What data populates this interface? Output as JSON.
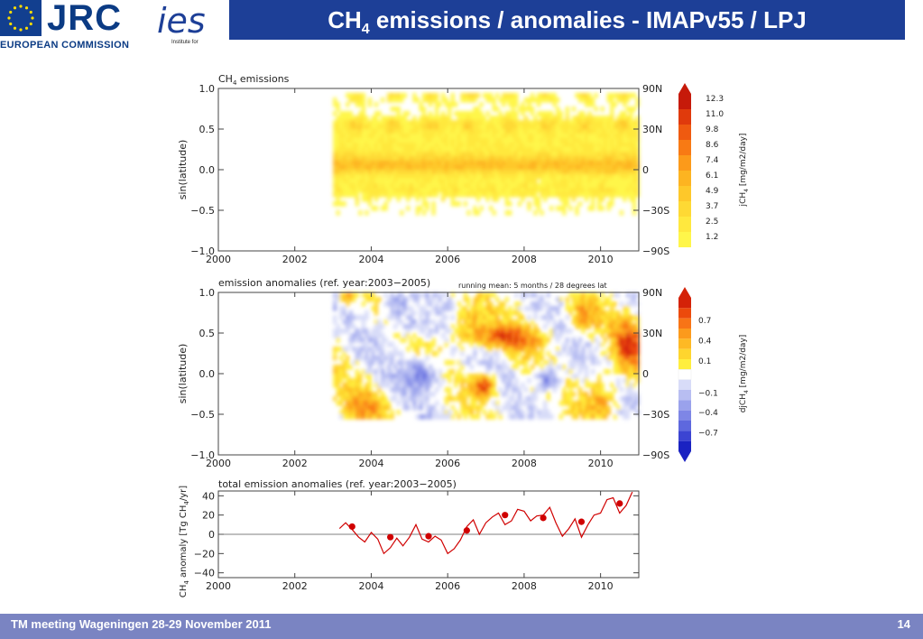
{
  "header": {
    "logo_jrc": "JRC",
    "logo_ec": "EUROPEAN COMMISSION",
    "logo_ies": "ies",
    "logo_ies_sub": "Institute for",
    "title_prefix": "CH",
    "title_sub": "4",
    "title_suffix": " emissions / anomalies - IMAPv55 / LPJ",
    "bar_color": "#1d3f97"
  },
  "footer": {
    "text": "TM meeting Wageningen 28-29 November 2011",
    "slide_number": "14",
    "bar_color": "#7a84c2"
  },
  "chart_data": [
    {
      "type": "heatmap",
      "title_text": "CH",
      "title_sub": "4",
      "title_rest": " emissions",
      "ylabel": "sin(latitude)",
      "x_ticks": [
        "2000",
        "2002",
        "2004",
        "2006",
        "2008",
        "2010"
      ],
      "x_tick_values": [
        2000,
        2002,
        2004,
        2006,
        2008,
        2010
      ],
      "xlim": [
        2000,
        2011
      ],
      "y_ticks": [
        "1.0",
        "0.5",
        "0.0",
        "−0.5",
        "−1.0"
      ],
      "y_tick_values": [
        1.0,
        0.5,
        0.0,
        -0.5,
        -1.0
      ],
      "ylim": [
        -1,
        1
      ],
      "right_ticks": [
        "90N",
        "30N",
        "0",
        "−30S",
        "−90S"
      ],
      "data_start_year": 2003,
      "colorbar_levels": [
        "12.3",
        "11.0",
        "9.8",
        "8.6",
        "7.4",
        "6.1",
        "4.9",
        "3.7",
        "2.5",
        "1.2"
      ],
      "colorbar_label_pre": "jCH",
      "colorbar_label_sub": "4",
      "colorbar_label_post": " [mg/m2/day]",
      "colorbar_colors": [
        "#c61a0a",
        "#e03a0c",
        "#ef5a10",
        "#f87a14",
        "#fc9a1a",
        "#fdb421",
        "#fec82a",
        "#fed934",
        "#ffe83e",
        "#fff64a"
      ]
    },
    {
      "type": "heatmap",
      "title": "emission anomalies (ref. year:2003−2005)",
      "note": "running mean:  5 months  / 28 degrees lat",
      "ylabel": "sin(latitude)",
      "x_ticks": [
        "2000",
        "2002",
        "2004",
        "2006",
        "2008",
        "2010"
      ],
      "x_tick_values": [
        2000,
        2002,
        2004,
        2006,
        2008,
        2010
      ],
      "xlim": [
        2000,
        2011
      ],
      "y_ticks": [
        "1.0",
        "0.5",
        "0.0",
        "−0.5",
        "−1.0"
      ],
      "y_tick_values": [
        1.0,
        0.5,
        0.0,
        -0.5,
        -1.0
      ],
      "ylim": [
        -1,
        1
      ],
      "right_ticks": [
        "90N",
        "30N",
        "0",
        "−30S",
        "−90S"
      ],
      "data_start_year": 2003,
      "colorbar_levels": [
        "0.7",
        "0.4",
        "0.1",
        "−0.1",
        "−0.4",
        "−0.7"
      ],
      "colorbar_label_pre": "djCH",
      "colorbar_label_sub": "4",
      "colorbar_label_post": " [mg/m2/day]",
      "colorbar_colors": [
        "#d42208",
        "#ec4a0c",
        "#f87416",
        "#fc9a1c",
        "#feb924",
        "#fed52e",
        "#ffee3e",
        "#ffffff",
        "#d8dcf8",
        "#b8bef2",
        "#9aa2ec",
        "#7e86e6",
        "#5e68de",
        "#3c44d2",
        "#1a22c2"
      ]
    },
    {
      "type": "line",
      "title": "total emission anomalies (ref. year:2003−2005)",
      "ylabel_pre": "CH",
      "ylabel_sub": "4",
      "ylabel_mid": " anomaly [Tg CH",
      "ylabel_sub2": "4",
      "ylabel_post": "/yr]",
      "x_ticks": [
        "2000",
        "2002",
        "2004",
        "2006",
        "2008",
        "2010"
      ],
      "x_tick_values": [
        2000,
        2002,
        2004,
        2006,
        2008,
        2010
      ],
      "xlim": [
        2000,
        2011
      ],
      "y_ticks": [
        "40",
        "20",
        "0",
        "−20",
        "−40"
      ],
      "y_tick_values": [
        40,
        20,
        0,
        -20,
        -40
      ],
      "ylim": [
        -45,
        45
      ],
      "line_color": "#d00000",
      "series": [
        {
          "x": [
            2003.17,
            2003.33,
            2003.5,
            2003.67,
            2003.83,
            2004.0,
            2004.17,
            2004.33,
            2004.5,
            2004.67,
            2004.83,
            2005.0,
            2005.17,
            2005.33,
            2005.5,
            2005.67,
            2005.83,
            2006.0,
            2006.17,
            2006.33,
            2006.5,
            2006.67,
            2006.83,
            2007.0,
            2007.17,
            2007.33,
            2007.5,
            2007.67,
            2007.83,
            2008.0,
            2008.17,
            2008.33,
            2008.5,
            2008.67,
            2008.83,
            2009.0,
            2009.17,
            2009.33,
            2009.5,
            2009.67,
            2009.83,
            2010.0,
            2010.17,
            2010.33,
            2010.5,
            2010.67,
            2010.83
          ],
          "y": [
            6,
            12,
            5,
            -3,
            -8,
            2,
            -5,
            -20,
            -14,
            -4,
            -12,
            -3,
            10,
            -5,
            -8,
            -2,
            -6,
            -20,
            -15,
            -6,
            8,
            15,
            0,
            12,
            18,
            22,
            10,
            14,
            26,
            24,
            14,
            19,
            20,
            28,
            12,
            -2,
            6,
            16,
            -3,
            10,
            20,
            22,
            36,
            38,
            22,
            30,
            44
          ]
        }
      ],
      "annual_points": {
        "x": [
          2003.5,
          2004.5,
          2005.5,
          2006.5,
          2007.5,
          2008.5,
          2009.5,
          2010.5
        ],
        "y": [
          8,
          -3,
          -2,
          4,
          20,
          17,
          13,
          32
        ]
      }
    }
  ]
}
